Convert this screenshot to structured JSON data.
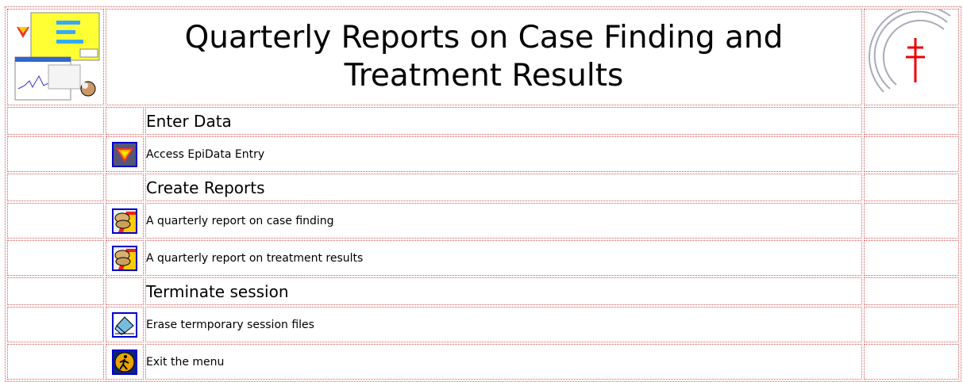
{
  "header": {
    "title": "Quarterly Reports on Case Finding and Treatment Results"
  },
  "sections": [
    {
      "heading": "Enter Data",
      "items": [
        "Access EpiData Entry"
      ]
    },
    {
      "heading": "Create Reports",
      "items": [
        "A quarterly report on case finding",
        "A quarterly report on treatment results"
      ]
    },
    {
      "heading": "Terminate session",
      "items": [
        "Erase termporary session files",
        "Exit the menu"
      ]
    }
  ]
}
